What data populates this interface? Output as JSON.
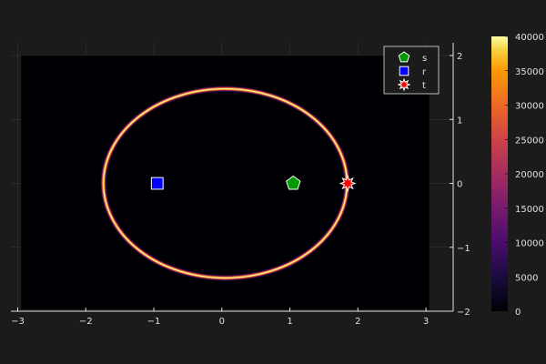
{
  "chart_data": {
    "type": "heatmap",
    "title": "",
    "xlabel": "",
    "ylabel": "",
    "xlim": [
      -3.1,
      3.4
    ],
    "ylim": [
      -2.0,
      2.2
    ],
    "x_ticks": [
      -3,
      -2,
      -1,
      0,
      1,
      2,
      3
    ],
    "y_ticks": [
      -2,
      -1,
      0,
      1,
      2
    ],
    "x_tick_labels": [
      "−3",
      "−2",
      "−1",
      "0",
      "1",
      "2",
      "3"
    ],
    "y_tick_labels": [
      "−2",
      "−1",
      "0",
      "1",
      "2"
    ],
    "heatmap_extent": {
      "x": [
        -2.95,
        3.05
      ],
      "y": [
        -1.97,
        2.0
      ]
    },
    "ring": {
      "center": [
        0.05,
        0.0
      ],
      "rx": 1.79,
      "ry": 1.48,
      "peak": 40000
    },
    "colorbar": {
      "min": 0,
      "max": 40000,
      "ticks": [
        0,
        5000,
        10000,
        15000,
        20000,
        25000,
        30000,
        35000,
        40000
      ],
      "tick_labels": [
        "0",
        "5000",
        "10000",
        "15000",
        "20000",
        "25000",
        "30000",
        "35000",
        "40000"
      ],
      "colormap": "inferno"
    },
    "markers": [
      {
        "name": "s",
        "shape": "pentagon",
        "x": 1.05,
        "y": 0.0,
        "color": "#009900"
      },
      {
        "name": "r",
        "shape": "square",
        "x": -0.95,
        "y": 0.0,
        "color": "#0000ff"
      },
      {
        "name": "t",
        "shape": "star",
        "x": 1.85,
        "y": 0.0,
        "color": "#ff0000"
      }
    ],
    "legend": {
      "placement": "top-right"
    },
    "grid": true
  },
  "colors": {
    "background": "#1b1b1b",
    "plot_background": "#000004",
    "axis": "#e0e0e0",
    "grid": "#3a3a3a"
  }
}
